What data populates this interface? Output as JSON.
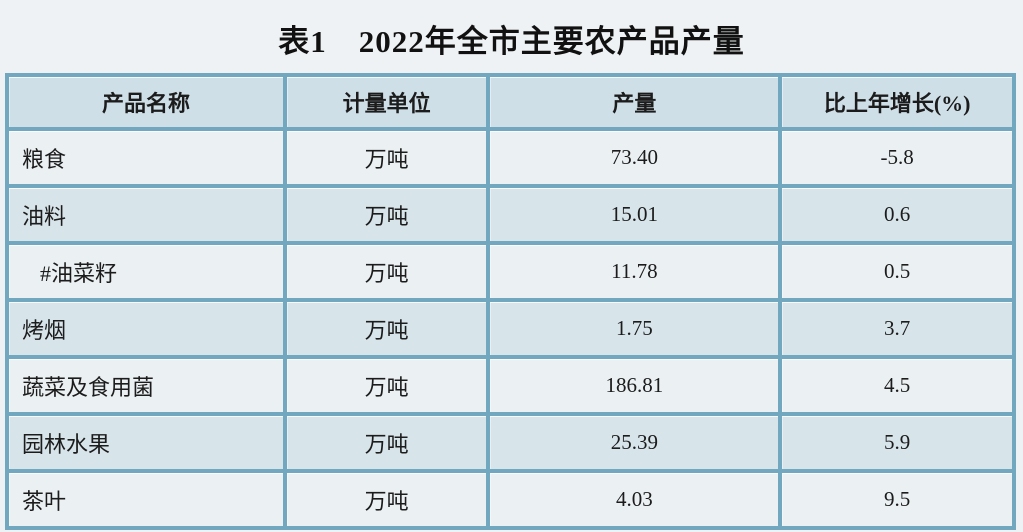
{
  "title": "表1　2022年全市主要农产品产量",
  "table": {
    "headers": [
      "产品名称",
      "计量单位",
      "产量",
      "比上年增长(%)"
    ],
    "rows": [
      {
        "product": "粮食",
        "unit": "万吨",
        "output": "73.40",
        "growth": "-5.8"
      },
      {
        "product": "油料",
        "unit": "万吨",
        "output": "15.01",
        "growth": "0.6"
      },
      {
        "product": "#油菜籽",
        "unit": "万吨",
        "output": "11.78",
        "growth": "0.5"
      },
      {
        "product": "烤烟",
        "unit": "万吨",
        "output": "1.75",
        "growth": "3.7"
      },
      {
        "product": "蔬菜及食用菌",
        "unit": "万吨",
        "output": "186.81",
        "growth": "4.5"
      },
      {
        "product": "园林水果",
        "unit": "万吨",
        "output": "25.39",
        "growth": "5.9"
      },
      {
        "product": "茶叶",
        "unit": "万吨",
        "output": "4.03",
        "growth": "9.5"
      }
    ]
  },
  "colors": {
    "page_bg": "#eef2f4",
    "border": "#72a7c0",
    "header_bg": "#cfdfe8",
    "row_light_bg": "#ebf0f3",
    "row_dark_bg": "#d7e4ea",
    "text": "#1c1c1c"
  }
}
